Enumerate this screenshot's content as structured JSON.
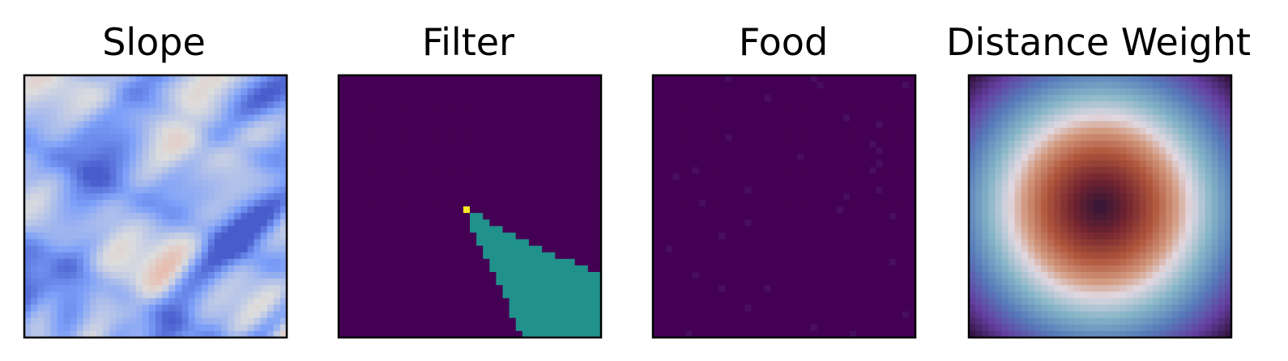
{
  "figure": {
    "panels": [
      {
        "title": "Slope",
        "colormap": "coolwarm"
      },
      {
        "title": "Filter",
        "colormap": "viridis"
      },
      {
        "title": "Food",
        "colormap": "viridis"
      },
      {
        "title": "Distance Weight",
        "colormap": "twilight_shifted"
      }
    ]
  },
  "chart_data": [
    {
      "type": "heatmap",
      "title": "Slope",
      "grid": false,
      "xticks": [],
      "yticks": [],
      "colormap": "coolwarm",
      "description_of_values": "random terrain slope field, mostly low-to-mid values (blue) with ridge-like darker blue streaks and sparse light-orange highs",
      "grid_size": [
        40,
        40
      ]
    },
    {
      "type": "heatmap",
      "title": "Filter",
      "grid": false,
      "xticks": [],
      "yticks": [],
      "colormap": "viridis",
      "grid_size": [
        40,
        40
      ],
      "value_levels": [
        0,
        0.5,
        1
      ],
      "agent_cell": {
        "row": 20,
        "col": 19,
        "value": 1
      },
      "cone_value": 0.5,
      "cone_rows": [
        {
          "row": 21,
          "cols": [
            20,
            21
          ]
        },
        {
          "row": 22,
          "cols": [
            20,
            22
          ]
        },
        {
          "row": 23,
          "cols": [
            20,
            24
          ]
        },
        {
          "row": 24,
          "cols": [
            21,
            26
          ]
        },
        {
          "row": 25,
          "cols": [
            21,
            28
          ]
        },
        {
          "row": 26,
          "cols": [
            22,
            30
          ]
        },
        {
          "row": 27,
          "cols": [
            22,
            32
          ]
        },
        {
          "row": 28,
          "cols": [
            23,
            35
          ]
        },
        {
          "row": 29,
          "cols": [
            23,
            37
          ]
        },
        {
          "row": 30,
          "cols": [
            24,
            39
          ]
        },
        {
          "row": 31,
          "cols": [
            24,
            39
          ]
        },
        {
          "row": 32,
          "cols": [
            25,
            39
          ]
        },
        {
          "row": 33,
          "cols": [
            25,
            39
          ]
        },
        {
          "row": 34,
          "cols": [
            26,
            39
          ]
        },
        {
          "row": 35,
          "cols": [
            26,
            39
          ]
        },
        {
          "row": 36,
          "cols": [
            26,
            39
          ]
        },
        {
          "row": 37,
          "cols": [
            27,
            39
          ]
        },
        {
          "row": 38,
          "cols": [
            27,
            39
          ]
        },
        {
          "row": 39,
          "cols": [
            28,
            39
          ]
        }
      ]
    },
    {
      "type": "heatmap",
      "title": "Food",
      "grid": false,
      "xticks": [],
      "yticks": [],
      "colormap": "viridis",
      "grid_size": [
        40,
        40
      ],
      "description_of_values": "almost all cells at minimum value, with sparse faint food cells",
      "food_cells": [
        [
          0,
          11
        ],
        [
          0,
          24
        ],
        [
          1,
          38
        ],
        [
          1,
          25
        ],
        [
          3,
          17
        ],
        [
          6,
          29
        ],
        [
          7,
          34
        ],
        [
          9,
          11
        ],
        [
          10,
          33
        ],
        [
          11,
          34
        ],
        [
          12,
          22
        ],
        [
          13,
          34
        ],
        [
          14,
          6
        ],
        [
          14,
          33
        ],
        [
          15,
          3
        ],
        [
          17,
          14
        ],
        [
          17,
          34
        ],
        [
          18,
          29
        ],
        [
          19,
          7
        ],
        [
          20,
          28
        ],
        [
          21,
          36
        ],
        [
          22,
          14
        ],
        [
          24,
          10
        ],
        [
          26,
          2
        ],
        [
          28,
          36
        ],
        [
          30,
          6
        ],
        [
          32,
          17
        ],
        [
          32,
          10
        ],
        [
          35,
          14
        ],
        [
          36,
          38
        ],
        [
          38,
          24
        ],
        [
          39,
          5
        ],
        [
          39,
          30
        ]
      ]
    },
    {
      "type": "heatmap",
      "title": "Distance Weight",
      "grid": false,
      "xticks": [],
      "yticks": [],
      "colormap": "twilight_shifted",
      "grid_size": [
        40,
        40
      ],
      "description_of_values": "radial distance weight from the center: darkest at center, warm brown, light ring at mid radius, teal-blue then purple toward the corners"
    }
  ]
}
